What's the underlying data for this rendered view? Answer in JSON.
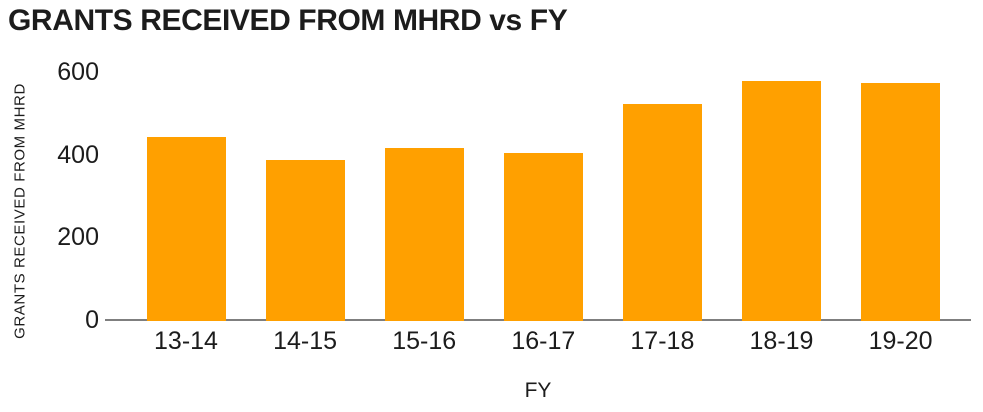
{
  "chart_data": {
    "type": "bar",
    "title": "GRANTS RECEIVED FROM MHRD vs FY",
    "xlabel": "FY",
    "ylabel": "GRANTS RECEIVED FROM MHRD",
    "categories": [
      "13-14",
      "14-15",
      "15-16",
      "16-17",
      "17-18",
      "18-19",
      "19-20"
    ],
    "values": [
      445,
      390,
      418,
      407,
      525,
      580,
      575
    ],
    "ylim": [
      0,
      600
    ],
    "yticks": [
      0,
      200,
      400,
      600
    ],
    "grid": false,
    "legend": "none",
    "bar_color": "#FFA000",
    "axis_color": "#7F7F7F",
    "text_color": "#1C1C1C"
  }
}
